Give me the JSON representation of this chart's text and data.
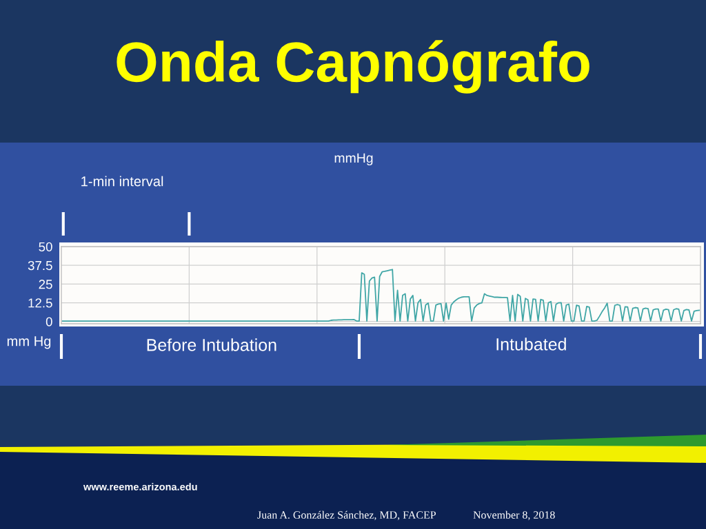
{
  "chart_data": {
    "type": "line",
    "title": "Onda Capnógrafo",
    "subtitle": "mmHg",
    "ylabel": "mm Hg",
    "categories": [
      null,
      null,
      null,
      null,
      null,
      null,
      null,
      null,
      null,
      null,
      null,
      null,
      null,
      null,
      null,
      null,
      null,
      null,
      null,
      null,
      null,
      null,
      null,
      null,
      null,
      null,
      null,
      null,
      null,
      null,
      null,
      null,
      null,
      null,
      null,
      null,
      null,
      null,
      null,
      null,
      null,
      null,
      null,
      null,
      null,
      null,
      null,
      null,
      null,
      null,
      null,
      null,
      null,
      null,
      null,
      null,
      null,
      null,
      null,
      null,
      null,
      null,
      null,
      null,
      null,
      null,
      null,
      null,
      null,
      null,
      null,
      null,
      null,
      null,
      null,
      null,
      null,
      null,
      null,
      null,
      null,
      null,
      null,
      null,
      null,
      null,
      null,
      null,
      null,
      null,
      null,
      null,
      null,
      null,
      null,
      null,
      null,
      null,
      null,
      null,
      null,
      null,
      null,
      null,
      null,
      null,
      null,
      null,
      null,
      null,
      null,
      null,
      null,
      null,
      null,
      null,
      null,
      null,
      null,
      null,
      null,
      null,
      null,
      null,
      null,
      null,
      null,
      null,
      null,
      null,
      null,
      null,
      null,
      null,
      null,
      null,
      null,
      null,
      null,
      null,
      null,
      null,
      null,
      null,
      null,
      null,
      null,
      null,
      null,
      null,
      null,
      null,
      null,
      null,
      null,
      null,
      null,
      null,
      null,
      null,
      null,
      null,
      null,
      null,
      null,
      null,
      null,
      null,
      null,
      null,
      null,
      null,
      null,
      null,
      null,
      null,
      null,
      null,
      null,
      null,
      null,
      null,
      null,
      null,
      null,
      null,
      null,
      null,
      null,
      null,
      null,
      null,
      null,
      null,
      null,
      null,
      null,
      null,
      null,
      null,
      null,
      null,
      null,
      null,
      null,
      null,
      null,
      null,
      null,
      null,
      null,
      null,
      null,
      null,
      null,
      null,
      null,
      null,
      null,
      null,
      null,
      null,
      null,
      null,
      null,
      null,
      null,
      null,
      null,
      null,
      null,
      null,
      null,
      null,
      null,
      null,
      null,
      null,
      null,
      null,
      null,
      null,
      null,
      null,
      null,
      null,
      null,
      null,
      null,
      null
    ],
    "series": [
      {
        "color": "#40a6a6",
        "values": [
          0.3,
          0.3,
          0.3,
          0.3,
          0.3,
          0.3,
          0.3,
          0.3,
          0.3,
          0.3,
          0.3,
          0.3,
          0.3,
          0.3,
          0.3,
          0.3,
          0.3,
          0.3,
          0.3,
          0.3,
          0.3,
          0.3,
          0.3,
          0.3,
          0.3,
          0.3,
          0.3,
          0.3,
          0.3,
          0.3,
          0.3,
          0.3,
          0.3,
          0.3,
          0.3,
          0.3,
          0.3,
          0.3,
          0.3,
          0.3,
          0.3,
          0.3,
          0.3,
          0.3,
          0.3,
          0.3,
          0.3,
          0.3,
          0.3,
          0.3,
          0.3,
          0.3,
          0.3,
          0.3,
          0.3,
          0.3,
          0.3,
          0.3,
          0.3,
          0.3,
          0.3,
          0.3,
          0.3,
          0.3,
          0.3,
          0.3,
          0.3,
          0.3,
          0.3,
          0.3,
          0.3,
          0.3,
          0.3,
          0.3,
          0.3,
          0.3,
          0.3,
          0.3,
          0.3,
          0.3,
          0.3,
          0.3,
          0.3,
          0.3,
          0.3,
          0.3,
          0.3,
          0.3,
          0.3,
          0.3,
          0.3,
          0.3,
          0.3,
          0.3,
          0.3,
          0.3,
          0.3,
          0.3,
          0.3,
          0.3,
          0.3,
          0.3,
          0.3,
          0.3,
          0.3,
          0.8,
          1.0,
          1.0,
          1.1,
          1.1,
          1.2,
          1.2,
          1.2,
          1.2,
          1.3,
          0.3,
          0.3,
          32.5,
          31.5,
          0.3,
          27.0,
          29.0,
          29.6,
          0.3,
          30.0,
          33.2,
          33.5,
          33.9,
          34.3,
          34.7,
          0.3,
          20.8,
          0.3,
          17.5,
          18.5,
          0.3,
          15.0,
          17.4,
          0.3,
          12.5,
          14.7,
          0.3,
          11.0,
          12.3,
          0.3,
          0.3,
          11.0,
          11.7,
          11.9,
          0.3,
          12.3,
          1.5,
          11.0,
          13.1,
          14.5,
          15.6,
          16.2,
          16.5,
          16.5,
          16.5,
          0.3,
          9.0,
          11.0,
          12.0,
          12.5,
          18.5,
          17.4,
          17.0,
          16.6,
          16.2,
          16.2,
          16.1,
          16.0,
          16.0,
          15.9,
          0.3,
          17.4,
          0.3,
          18.1,
          16.8,
          0.3,
          15.4,
          14.5,
          0.3,
          15.0,
          14.8,
          0.3,
          14.7,
          14.2,
          0.3,
          12.5,
          13.3,
          0.3,
          11.5,
          12.5,
          12.6,
          0.3,
          11.0,
          11.6,
          0.3,
          0.3,
          10.8,
          10.4,
          0.3,
          0.3,
          10.0,
          9.6,
          0.3,
          0.3,
          0.8,
          3.5,
          6.5,
          9.0,
          12.2,
          0.3,
          0.3,
          10.8,
          11.3,
          10.8,
          0.3,
          9.8,
          9.7,
          0.3,
          8.8,
          9.3,
          9.0,
          0.3,
          8.3,
          8.9,
          8.6,
          0.3,
          7.8,
          8.3,
          8.3,
          0.3,
          7.5,
          8.2,
          7.9,
          0.3,
          7.8,
          8.5,
          8.2,
          0.3,
          7.3,
          8.0,
          7.7,
          0.3,
          6.8,
          7.3,
          7.5
        ]
      }
    ],
    "ylim": [
      -1.5,
      50
    ],
    "yticks": [
      0,
      12.5,
      25,
      37.5,
      50
    ],
    "grid": true,
    "line_style": "solid",
    "annotations": [
      "1-min interval",
      "Before Intubation",
      "Intubated",
      "www.reeme.arizona.edu",
      "Juan A. González Sánchez, MD, FACEP",
      "November 8, 2018"
    ]
  }
}
